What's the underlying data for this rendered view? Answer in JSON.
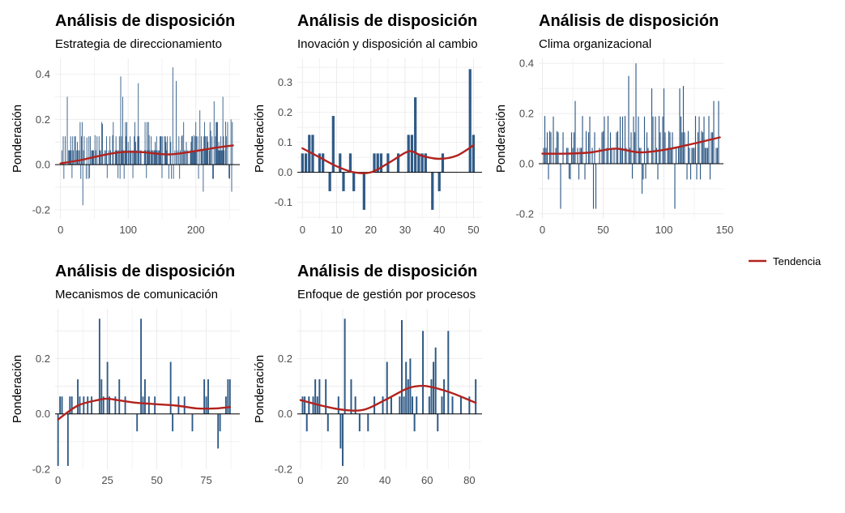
{
  "chart_data": [
    {
      "type": "bar",
      "title": "Análisis de disposición",
      "subtitle": "Estrategia de direccionamiento",
      "ylabel": "Ponderación",
      "xlim": [
        -8,
        265
      ],
      "ylim": [
        -0.24,
        0.47
      ],
      "xticks": [
        0,
        100,
        200
      ],
      "yticks": [
        -0.2,
        0.0,
        0.2,
        0.4
      ],
      "ytick_labels": [
        "-0.2",
        "0.0",
        "0.2",
        "0.4"
      ],
      "bar_width": 1.1,
      "n": 255,
      "seed": 11,
      "values": [],
      "spikes": [
        [
          10,
          0.3
        ],
        [
          17,
          -0.06
        ],
        [
          25,
          0.1
        ],
        [
          33,
          -0.18
        ],
        [
          39,
          0.12
        ],
        [
          43,
          -0.06
        ],
        [
          51,
          0.13
        ],
        [
          62,
          0.18
        ],
        [
          69,
          -0.06
        ],
        [
          77,
          0.13
        ],
        [
          85,
          -0.06
        ],
        [
          89,
          0.39
        ],
        [
          92,
          0.3
        ],
        [
          100,
          0.1
        ],
        [
          107,
          -0.06
        ],
        [
          111,
          0.1
        ],
        [
          115,
          0.36
        ],
        [
          127,
          -0.06
        ],
        [
          131,
          0.13
        ],
        [
          140,
          0.1
        ],
        [
          150,
          -0.06
        ],
        [
          156,
          0.1
        ],
        [
          163,
          0.1
        ],
        [
          166,
          0.43
        ],
        [
          171,
          0.37
        ],
        [
          180,
          0.13
        ],
        [
          186,
          0.1
        ],
        [
          193,
          0.1
        ],
        [
          197,
          0.13
        ],
        [
          206,
          0.24
        ],
        [
          211,
          -0.12
        ],
        [
          218,
          0.1
        ],
        [
          222,
          0.15
        ],
        [
          227,
          0.28
        ],
        [
          234,
          0.1
        ],
        [
          240,
          0.3
        ],
        [
          244,
          0.19
        ],
        [
          249,
          -0.06
        ],
        [
          252,
          0.2
        ],
        [
          253,
          -0.12
        ]
      ],
      "trend_x": [
        0,
        30,
        60,
        90,
        120,
        160,
        200,
        230,
        255
      ],
      "trend_y": [
        0.005,
        0.02,
        0.04,
        0.055,
        0.055,
        0.045,
        0.06,
        0.075,
        0.085
      ]
    },
    {
      "type": "bar",
      "title": "Análisis de disposición",
      "subtitle": "Inovación y disposición al cambio",
      "ylabel": "Ponderación",
      "xlim": [
        -1.5,
        52.5
      ],
      "ylim": [
        -0.155,
        0.38
      ],
      "xticks": [
        0,
        10,
        20,
        30,
        40,
        50
      ],
      "yticks": [
        -0.1,
        0.0,
        0.1,
        0.2,
        0.3
      ],
      "ytick_labels": [
        "-0.1",
        "0.0",
        "0.1",
        "0.2",
        "0.3"
      ],
      "bar_width": 0.9,
      "n": 51,
      "seed": 0,
      "values": [
        0.063,
        0.063,
        0.125,
        0.125,
        0.0,
        0.063,
        0.063,
        0.0,
        -0.063,
        0.188,
        0.0,
        0.063,
        -0.063,
        0.0,
        0.063,
        -0.063,
        0.0,
        0.0,
        -0.125,
        0.0,
        0.0,
        0.063,
        0.063,
        0.063,
        0.0,
        0.063,
        0.0,
        0.0,
        0.063,
        0.0,
        0.0,
        0.125,
        0.125,
        0.25,
        0.063,
        0.063,
        0.063,
        0.0,
        -0.125,
        0.0,
        -0.063,
        0.063,
        0.0,
        0.0,
        0.0,
        0.0,
        0.0,
        0.0,
        0.0,
        0.344,
        0.125
      ],
      "spikes": [],
      "trend_x": [
        0,
        5,
        10,
        15,
        20,
        25,
        30,
        32,
        35,
        40,
        45,
        50
      ],
      "trend_y": [
        0.08,
        0.05,
        0.02,
        0.0,
        0.0,
        0.03,
        0.065,
        0.07,
        0.055,
        0.045,
        0.055,
        0.09
      ]
    },
    {
      "type": "bar",
      "title": "Análisis de disposición",
      "subtitle": "Clima organizacional",
      "ylabel": "Ponderación",
      "xlim": [
        -3,
        149
      ],
      "ylim": [
        -0.22,
        0.42
      ],
      "xticks": [
        0,
        50,
        100,
        150
      ],
      "yticks": [
        -0.2,
        0.0,
        0.2,
        0.4
      ],
      "ytick_labels": [
        "-0.2",
        "0.0",
        "0.2",
        "0.4"
      ],
      "bar_width": 0.9,
      "n": 146,
      "seed": 23,
      "values": [],
      "spikes": [
        [
          2,
          0.19
        ],
        [
          6,
          0.13
        ],
        [
          12,
          0.13
        ],
        [
          15,
          -0.18
        ],
        [
          22,
          -0.06
        ],
        [
          27,
          0.25
        ],
        [
          33,
          0.19
        ],
        [
          36,
          0.13
        ],
        [
          42,
          -0.18
        ],
        [
          44,
          -0.18
        ],
        [
          50,
          0.13
        ],
        [
          54,
          0.19
        ],
        [
          62,
          0.13
        ],
        [
          68,
          0.19
        ],
        [
          71,
          0.35
        ],
        [
          74,
          -0.06
        ],
        [
          77,
          0.4
        ],
        [
          82,
          -0.12
        ],
        [
          85,
          -0.06
        ],
        [
          90,
          0.3
        ],
        [
          96,
          0.19
        ],
        [
          100,
          0.3
        ],
        [
          104,
          0.13
        ],
        [
          109,
          -0.18
        ],
        [
          113,
          0.3
        ],
        [
          116,
          0.31
        ],
        [
          120,
          0.13
        ],
        [
          126,
          0.19
        ],
        [
          131,
          0.13
        ],
        [
          137,
          0.19
        ],
        [
          141,
          0.25
        ],
        [
          145,
          0.25
        ]
      ],
      "trend_x": [
        0,
        20,
        40,
        60,
        80,
        100,
        120,
        146
      ],
      "trend_y": [
        0.04,
        0.04,
        0.045,
        0.06,
        0.045,
        0.055,
        0.075,
        0.105
      ]
    },
    {
      "type": "bar",
      "title": "Análisis de disposición",
      "subtitle": "Mecanismos de comunicación",
      "ylabel": "Ponderación",
      "xlim": [
        -1.5,
        92
      ],
      "ylim": [
        -0.2,
        0.38
      ],
      "xticks": [
        0,
        25,
        50,
        75
      ],
      "yticks": [
        -0.2,
        0.0,
        0.2
      ],
      "ytick_labels": [
        "-0.2",
        "0.0",
        "0.2"
      ],
      "bar_width": 0.9,
      "n": 88,
      "seed": 0,
      "values": [
        -0.188,
        0.063,
        0.063,
        0.0,
        0.0,
        -0.188,
        0.063,
        0.063,
        0.0,
        0.0,
        0.125,
        0.063,
        0.0,
        0.063,
        0.0,
        0.063,
        0.0,
        0.063,
        0.0,
        0.0,
        0.0,
        0.344,
        0.125,
        0.063,
        0.0,
        0.188,
        0.063,
        0.0,
        0.0,
        0.063,
        0.0,
        0.125,
        0.0,
        0.0,
        0.063,
        0.0,
        0.0,
        0.0,
        0.0,
        0.0,
        -0.063,
        0.0,
        0.344,
        0.063,
        0.125,
        0.0,
        0.063,
        0.0,
        0.0,
        0.063,
        0.0,
        0.0,
        0.0,
        0.0,
        0.0,
        0.0,
        0.0,
        0.188,
        -0.063,
        0.0,
        0.0,
        0.063,
        0.0,
        0.0,
        0.063,
        0.0,
        0.0,
        0.0,
        -0.063,
        0.0,
        0.0,
        0.0,
        0.0,
        0.0,
        0.125,
        0.063,
        0.0,
        0.0,
        0.0,
        0.0,
        0.0,
        -0.125,
        0.063,
        0.0,
        0.0,
        -0.063,
        0.0,
        0.0
      ],
      "spikes": [
        [
          76,
          0.125
        ],
        [
          78,
          0.0
        ],
        [
          80,
          0.0
        ],
        [
          82,
          -0.063
        ],
        [
          85,
          0.063
        ],
        [
          86,
          0.125
        ],
        [
          87,
          0.125
        ]
      ],
      "trend_x": [
        0,
        10,
        20,
        25,
        30,
        40,
        50,
        60,
        70,
        80,
        87
      ],
      "trend_y": [
        -0.02,
        0.03,
        0.05,
        0.055,
        0.05,
        0.04,
        0.035,
        0.03,
        0.02,
        0.02,
        0.025
      ]
    },
    {
      "type": "bar",
      "title": "Análisis de disposición",
      "subtitle": "Enfoque de gestión por procesos",
      "ylabel": "Ponderación",
      "xlim": [
        -1.5,
        86
      ],
      "ylim": [
        -0.2,
        0.38
      ],
      "xticks": [
        0,
        20,
        40,
        60,
        80
      ],
      "yticks": [
        -0.2,
        0.0,
        0.2
      ],
      "ytick_labels": [
        "-0.2",
        "0.0",
        "0.2"
      ],
      "bar_width": 0.9,
      "n": 84,
      "seed": 0,
      "values": [
        0.0,
        0.063,
        0.063,
        -0.063,
        0.063,
        0.0,
        0.063,
        0.125,
        0.063,
        0.125,
        0.0,
        0.0,
        0.125,
        -0.063,
        0.0,
        0.0,
        0.0,
        0.0,
        0.063,
        -0.125,
        -0.188,
        0.344,
        0.0,
        0.0,
        0.125,
        0.0,
        0.063,
        0.0,
        -0.063,
        0.0,
        0.0,
        0.0,
        -0.063,
        0.0,
        0.0,
        0.063,
        0.0,
        0.0,
        0.0,
        0.063,
        0.0,
        0.188,
        0.0,
        0.063,
        0.0,
        0.0,
        0.0,
        0.063,
        0.125,
        0.063,
        0.188,
        0.125,
        0.125,
        0.063,
        -0.063,
        0.063,
        0.0,
        0.0,
        0.063,
        0.0,
        0.0,
        0.063,
        0.125,
        0.188,
        0.063,
        -0.063,
        0.0,
        0.063,
        0.125,
        0.0,
        0.063,
        0.0,
        0.063,
        0.0,
        0.0,
        0.0,
        0.063,
        0.0,
        0.0,
        0.0,
        0.063,
        0.0,
        0.0,
        0.125
      ],
      "spikes": [
        [
          48,
          0.339
        ],
        [
          52,
          0.2
        ],
        [
          58,
          0.3
        ],
        [
          64,
          0.24
        ],
        [
          70,
          0.3
        ]
      ],
      "trend_x": [
        0,
        10,
        20,
        30,
        40,
        50,
        55,
        60,
        70,
        80,
        83
      ],
      "trend_y": [
        0.05,
        0.03,
        0.015,
        0.015,
        0.05,
        0.09,
        0.1,
        0.1,
        0.08,
        0.05,
        0.04
      ]
    }
  ],
  "legend": {
    "position": "right",
    "items": [
      {
        "label": "Tendencia",
        "color": "#b2221e"
      }
    ]
  },
  "colors": {
    "bar": "#2f5a86",
    "trend": "#b2221e",
    "grid": "#ebebeb",
    "zero_line": "#000000"
  }
}
